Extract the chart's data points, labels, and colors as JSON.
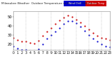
{
  "title": "Milwaukee Weather  Outdoor Temp",
  "background_color": "#ffffff",
  "outdoor_temp_color": "#cc0000",
  "wind_chill_color": "#0000cc",
  "legend_label_temp": "Outdoor Temp",
  "legend_label_wc": "Wind Chill",
  "xlim": [
    0,
    23
  ],
  "ylim": [
    14,
    56
  ],
  "ytick_values": [
    20,
    30,
    40,
    50
  ],
  "ytick_labels": [
    "20",
    "30",
    "40",
    "50"
  ],
  "hours": [
    0,
    1,
    2,
    3,
    4,
    5,
    6,
    7,
    8,
    9,
    10,
    11,
    12,
    13,
    14,
    15,
    16,
    17,
    18,
    19,
    20,
    21,
    22,
    23
  ],
  "outdoor_temp": [
    27,
    25,
    23,
    23,
    22,
    21,
    24,
    29,
    34,
    38,
    42,
    46,
    49,
    51,
    50,
    47,
    44,
    40,
    36,
    32,
    29,
    27,
    26,
    25
  ],
  "wind_chill": [
    18,
    16,
    14,
    14,
    13,
    12,
    15,
    20,
    26,
    30,
    34,
    38,
    42,
    45,
    45,
    43,
    39,
    35,
    30,
    26,
    23,
    20,
    18,
    17
  ],
  "marker_size": 1.2,
  "font_size": 3.8,
  "grid_positions": [
    3,
    6,
    9,
    12,
    15,
    18,
    21
  ],
  "xtick_positions": [
    0,
    1,
    2,
    3,
    4,
    5,
    6,
    7,
    8,
    9,
    10,
    11,
    12,
    13,
    14,
    15,
    16,
    17,
    18,
    19,
    20,
    21,
    22,
    23
  ],
  "xtick_labels": [
    "0",
    "1",
    "2",
    "3",
    "4",
    "5",
    "6",
    "7",
    "8",
    "9",
    "10",
    "11",
    "12",
    "13",
    "14",
    "15",
    "16",
    "17",
    "18",
    "19",
    "20",
    "21",
    "22",
    "23"
  ]
}
